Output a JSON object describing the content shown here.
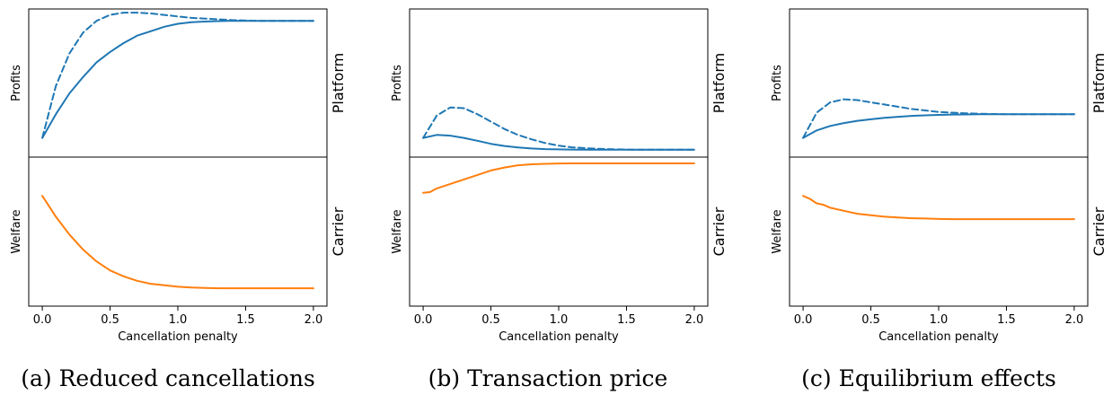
{
  "figure": {
    "captions": [
      "(a) Reduced cancellations",
      "(b) Transaction price",
      "(c) Equilibrium effects"
    ],
    "row_labels": [
      "Platform",
      "Carrier"
    ],
    "colors": {
      "profits": "#1f77b4",
      "welfare": "#ff7f0e",
      "axes": "#000000"
    }
  },
  "chart_data": [
    {
      "type": "line",
      "title": "(a) Reduced cancellations",
      "xlabel": "Cancellation penalty",
      "xlim": [
        -0.1,
        2.1
      ],
      "xticks": [
        0.0,
        0.5,
        1.0,
        1.5,
        2.0
      ],
      "tick_labels": [
        "0.0",
        "0.5",
        "1.0",
        "1.5",
        "2.0"
      ],
      "panels": [
        {
          "row_label": "Platform",
          "ylabel": "Profits",
          "ylim": [
            0,
            1
          ],
          "yticks": "none",
          "series": [
            {
              "style": "solid",
              "color": "#1f77b4",
              "x": [
                0,
                0.1,
                0.2,
                0.3,
                0.4,
                0.5,
                0.6,
                0.7,
                0.8,
                0.9,
                1.0,
                1.1,
                1.2,
                1.3,
                1.4,
                1.5,
                1.6,
                1.7,
                1.8,
                1.9,
                2.0
              ],
              "y": [
                0.13,
                0.29,
                0.43,
                0.54,
                0.64,
                0.71,
                0.77,
                0.82,
                0.85,
                0.88,
                0.9,
                0.91,
                0.915,
                0.918,
                0.92,
                0.92,
                0.92,
                0.92,
                0.92,
                0.92,
                0.92
              ]
            },
            {
              "style": "dashed",
              "color": "#1f77b4",
              "x": [
                0,
                0.1,
                0.2,
                0.3,
                0.4,
                0.5,
                0.6,
                0.7,
                0.8,
                0.9,
                1.0,
                1.1,
                1.2,
                1.3,
                1.4,
                1.5,
                1.6,
                1.7,
                1.8,
                1.9,
                2.0
              ],
              "y": [
                0.13,
                0.48,
                0.7,
                0.84,
                0.92,
                0.96,
                0.975,
                0.975,
                0.97,
                0.96,
                0.95,
                0.94,
                0.935,
                0.93,
                0.925,
                0.922,
                0.92,
                0.92,
                0.92,
                0.92,
                0.92
              ]
            }
          ]
        },
        {
          "row_label": "Carrier",
          "ylabel": "Welfare",
          "ylim": [
            0,
            1
          ],
          "yticks": "none",
          "series": [
            {
              "style": "solid",
              "color": "#ff7f0e",
              "x": [
                0,
                0.1,
                0.2,
                0.3,
                0.4,
                0.5,
                0.6,
                0.7,
                0.8,
                0.9,
                1.0,
                1.1,
                1.2,
                1.3,
                1.4,
                1.5,
                1.6,
                1.7,
                1.8,
                1.9,
                2.0
              ],
              "y": [
                0.74,
                0.6,
                0.48,
                0.38,
                0.3,
                0.24,
                0.2,
                0.17,
                0.15,
                0.14,
                0.13,
                0.125,
                0.122,
                0.12,
                0.12,
                0.12,
                0.12,
                0.12,
                0.12,
                0.12,
                0.12
              ]
            }
          ]
        }
      ]
    },
    {
      "type": "line",
      "title": "(b) Transaction price",
      "xlabel": "Cancellation penalty",
      "xlim": [
        -0.1,
        2.1
      ],
      "xticks": [
        0.0,
        0.5,
        1.0,
        1.5,
        2.0
      ],
      "tick_labels": [
        "0.0",
        "0.5",
        "1.0",
        "1.5",
        "2.0"
      ],
      "panels": [
        {
          "row_label": "Platform",
          "ylabel": "Profits",
          "ylim": [
            0,
            1
          ],
          "yticks": "none",
          "series": [
            {
              "style": "solid",
              "color": "#1f77b4",
              "x": [
                0,
                0.1,
                0.2,
                0.3,
                0.4,
                0.5,
                0.6,
                0.7,
                0.8,
                0.9,
                1.0,
                1.1,
                1.2,
                1.3,
                1.4,
                1.5,
                1.6,
                1.7,
                1.8,
                1.9,
                2.0
              ],
              "y": [
                0.13,
                0.15,
                0.145,
                0.13,
                0.11,
                0.09,
                0.075,
                0.065,
                0.058,
                0.054,
                0.052,
                0.051,
                0.05,
                0.05,
                0.05,
                0.05,
                0.05,
                0.05,
                0.05,
                0.05,
                0.05
              ]
            },
            {
              "style": "dashed",
              "color": "#1f77b4",
              "x": [
                0,
                0.1,
                0.2,
                0.3,
                0.4,
                0.5,
                0.6,
                0.7,
                0.8,
                0.9,
                1.0,
                1.1,
                1.2,
                1.3,
                1.4,
                1.5,
                1.6,
                1.7,
                1.8,
                1.9,
                2.0
              ],
              "y": [
                0.13,
                0.28,
                0.335,
                0.33,
                0.29,
                0.24,
                0.19,
                0.15,
                0.12,
                0.095,
                0.077,
                0.066,
                0.06,
                0.056,
                0.053,
                0.051,
                0.05,
                0.05,
                0.05,
                0.05,
                0.05
              ]
            }
          ]
        },
        {
          "row_label": "Carrier",
          "ylabel": "Welfare",
          "ylim": [
            0,
            1
          ],
          "yticks": "none",
          "series": [
            {
              "style": "solid",
              "color": "#ff7f0e",
              "x": [
                0,
                0.05,
                0.1,
                0.2,
                0.3,
                0.4,
                0.5,
                0.6,
                0.7,
                0.8,
                0.9,
                1.0,
                1.1,
                1.2,
                1.3,
                1.4,
                1.5,
                1.6,
                1.7,
                1.8,
                1.9,
                2.0
              ],
              "y": [
                0.76,
                0.765,
                0.79,
                0.82,
                0.85,
                0.88,
                0.91,
                0.93,
                0.945,
                0.952,
                0.955,
                0.957,
                0.958,
                0.958,
                0.958,
                0.958,
                0.958,
                0.958,
                0.958,
                0.958,
                0.958,
                0.958
              ]
            }
          ]
        }
      ]
    },
    {
      "type": "line",
      "title": "(c) Equilibrium effects",
      "xlabel": "Cancellation penalty",
      "xlim": [
        -0.1,
        2.1
      ],
      "xticks": [
        0.0,
        0.5,
        1.0,
        1.5,
        2.0
      ],
      "tick_labels": [
        "0.0",
        "0.5",
        "1.0",
        "1.5",
        "2.0"
      ],
      "panels": [
        {
          "row_label": "Platform",
          "ylabel": "Profits",
          "ylim": [
            0,
            1
          ],
          "yticks": "none",
          "series": [
            {
              "style": "solid",
              "color": "#1f77b4",
              "x": [
                0,
                0.1,
                0.2,
                0.3,
                0.4,
                0.5,
                0.6,
                0.7,
                0.8,
                0.9,
                1.0,
                1.1,
                1.2,
                1.3,
                1.4,
                1.5,
                1.6,
                1.7,
                1.8,
                1.9,
                2.0
              ],
              "y": [
                0.13,
                0.18,
                0.21,
                0.23,
                0.245,
                0.255,
                0.265,
                0.272,
                0.278,
                0.282,
                0.285,
                0.287,
                0.288,
                0.289,
                0.29,
                0.29,
                0.29,
                0.29,
                0.29,
                0.29,
                0.29
              ]
            },
            {
              "style": "dashed",
              "color": "#1f77b4",
              "x": [
                0,
                0.1,
                0.2,
                0.3,
                0.4,
                0.5,
                0.6,
                0.7,
                0.8,
                0.9,
                1.0,
                1.1,
                1.2,
                1.3,
                1.4,
                1.5,
                1.6,
                1.7,
                1.8,
                1.9,
                2.0
              ],
              "y": [
                0.13,
                0.3,
                0.37,
                0.39,
                0.385,
                0.37,
                0.355,
                0.34,
                0.325,
                0.315,
                0.305,
                0.3,
                0.296,
                0.293,
                0.291,
                0.29,
                0.29,
                0.29,
                0.29,
                0.29,
                0.29
              ]
            }
          ]
        },
        {
          "row_label": "Carrier",
          "ylabel": "Welfare",
          "ylim": [
            0,
            1
          ],
          "yticks": "none",
          "series": [
            {
              "style": "solid",
              "color": "#ff7f0e",
              "x": [
                0,
                0.05,
                0.1,
                0.15,
                0.2,
                0.3,
                0.4,
                0.5,
                0.6,
                0.7,
                0.8,
                0.9,
                1.0,
                1.1,
                1.2,
                1.3,
                1.4,
                1.5,
                1.6,
                1.7,
                1.8,
                1.9,
                2.0
              ],
              "y": [
                0.74,
                0.72,
                0.69,
                0.68,
                0.66,
                0.64,
                0.62,
                0.61,
                0.6,
                0.595,
                0.59,
                0.588,
                0.585,
                0.584,
                0.584,
                0.584,
                0.584,
                0.584,
                0.584,
                0.584,
                0.584,
                0.584,
                0.584
              ]
            }
          ]
        }
      ]
    }
  ]
}
